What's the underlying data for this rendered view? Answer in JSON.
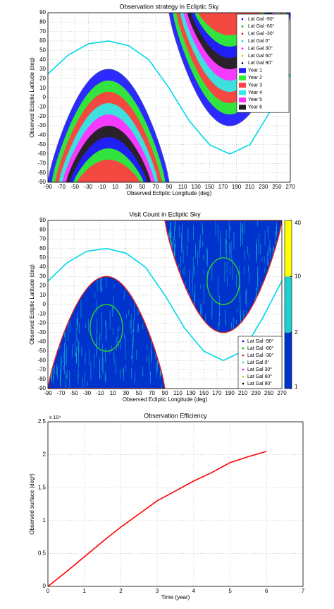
{
  "chart_data": [
    {
      "type": "region",
      "title": "Observation strategy in Ecliptic Sky",
      "xlabel": "Observed Ecliptic Longitude (deg)",
      "ylabel": "Observed Ecliptic Latitude (deg)",
      "xlim": [
        -90,
        270
      ],
      "xticks": [
        -90,
        -70,
        -50,
        -30,
        -10,
        10,
        30,
        50,
        70,
        90,
        110,
        130,
        150,
        170,
        190,
        210,
        230,
        250,
        270
      ],
      "ylim": [
        -90,
        90
      ],
      "yticks": [
        -90,
        -80,
        -70,
        -60,
        -50,
        -40,
        -30,
        -20,
        -10,
        0,
        10,
        20,
        30,
        40,
        50,
        60,
        70,
        80,
        90
      ],
      "grid": true,
      "legend": "upper right",
      "lat_gal": [
        {
          "name": "Lat Gal -90°",
          "color": "#0000ff"
        },
        {
          "name": "Lat Gal -60°",
          "color": "#00aa00"
        },
        {
          "name": "Lat Gal -30°",
          "color": "#ff0000"
        },
        {
          "name": "Lat Gal 0°",
          "color": "#00d8e8",
          "x": [
            -90,
            -60,
            -30,
            0,
            30,
            60,
            90,
            120,
            150,
            180,
            210,
            240,
            270
          ],
          "values": [
            25,
            45,
            57,
            60,
            55,
            40,
            10,
            -25,
            -50,
            -60,
            -50,
            -15,
            25
          ]
        },
        {
          "name": "Lat Gal 30°",
          "color": "#ff00ff"
        },
        {
          "name": "Lat Gal 60°",
          "color": "#c8c800"
        },
        {
          "name": "Lat Gal 90°",
          "color": "#000000"
        }
      ],
      "years": [
        {
          "name": "Year 1",
          "color": "#2020ff"
        },
        {
          "name": "Year 2",
          "color": "#33ee33"
        },
        {
          "name": "Year 3",
          "color": "#ff4040"
        },
        {
          "name": "Year 4",
          "color": "#33e8e8"
        },
        {
          "name": "Year 5",
          "color": "#ff33ff"
        },
        {
          "name": "Year 6",
          "color": "#202020"
        }
      ]
    },
    {
      "type": "heatmap",
      "title": "Visit Count in Ecliptic Sky",
      "xlabel": "Observed Ecliptic Longitude (deg)",
      "ylabel": "Observed Ecliptic Latitude (deg)",
      "xlim": [
        -90,
        270
      ],
      "xticks": [
        -90,
        -70,
        -50,
        -30,
        -10,
        10,
        30,
        50,
        70,
        90,
        110,
        130,
        150,
        170,
        190,
        210,
        230,
        250,
        270
      ],
      "ylim": [
        -90,
        90
      ],
      "yticks": [
        -90,
        -80,
        -70,
        -60,
        -50,
        -40,
        -30,
        -20,
        -10,
        0,
        10,
        20,
        30,
        40,
        50,
        60,
        70,
        80,
        90
      ],
      "grid": true,
      "legend": "lower right",
      "colorbar": {
        "ticks": [
          1,
          2,
          10,
          40
        ],
        "colors": [
          "#0033cc",
          "#20d0d0",
          "#ffff00"
        ]
      },
      "lat_gal": [
        {
          "name": "Lat Gal -90°",
          "color": "#0000ff"
        },
        {
          "name": "Lat Gal -60°",
          "color": "#00aa00"
        },
        {
          "name": "Lat Gal -30°",
          "color": "#ff0000"
        },
        {
          "name": "Lat Gal 0°",
          "color": "#00d8e8",
          "x": [
            -90,
            -60,
            -30,
            0,
            30,
            60,
            90,
            120,
            150,
            180,
            210,
            240,
            270
          ],
          "values": [
            25,
            45,
            57,
            60,
            55,
            40,
            10,
            -25,
            -50,
            -60,
            -50,
            -15,
            25
          ]
        },
        {
          "name": "Lat Gal 30°",
          "color": "#ff00ff"
        },
        {
          "name": "Lat Gal 60°",
          "color": "#c8c800"
        },
        {
          "name": "Lat Gal 90°",
          "color": "#000000"
        }
      ]
    },
    {
      "type": "line",
      "title": "Observation Efficiency",
      "xlabel": "Time (year)",
      "ylabel": "Observed surface (deg²)",
      "multiplier": "x 10⁴",
      "xlim": [
        0,
        7
      ],
      "xticks": [
        0,
        1,
        2,
        3,
        4,
        5,
        6,
        7
      ],
      "ylim": [
        0,
        2.5
      ],
      "yticks": [
        0,
        0.5,
        1,
        1.5,
        2,
        2.5
      ],
      "grid": true,
      "color": "#ff0000",
      "x": [
        0,
        0.5,
        1,
        1.5,
        2,
        2.5,
        3,
        3.5,
        4,
        4.5,
        5,
        5.5,
        6
      ],
      "values": [
        0,
        0.22,
        0.45,
        0.68,
        0.9,
        1.1,
        1.3,
        1.45,
        1.6,
        1.73,
        1.88,
        1.97,
        2.05
      ]
    }
  ]
}
